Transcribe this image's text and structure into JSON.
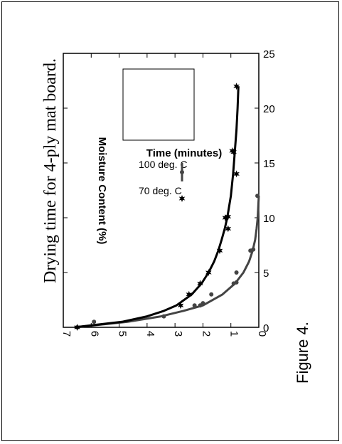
{
  "figure_label": "Figure 4.",
  "chart_data": {
    "type": "line",
    "title": "Drying time for 4-ply mat board.",
    "xlabel": "Time (minutes)",
    "ylabel": "Moisture Content (%)",
    "xlim": [
      0,
      25
    ],
    "ylim": [
      0,
      7
    ],
    "xticks": [
      0,
      5,
      10,
      15,
      20,
      25
    ],
    "yticks": [
      0,
      1,
      2,
      3,
      4,
      5,
      6,
      7
    ],
    "legend_position": "top-right",
    "series": [
      {
        "name": "100 deg. C",
        "marker": "circle",
        "color": "#444444",
        "points": [
          [
            0,
            6.5
          ],
          [
            0.5,
            5.9
          ],
          [
            1,
            3.4
          ],
          [
            2,
            2.3
          ],
          [
            2,
            2.1
          ],
          [
            2.2,
            2.0
          ],
          [
            3,
            1.7
          ],
          [
            4,
            0.9
          ],
          [
            4.1,
            0.8
          ],
          [
            5,
            0.8
          ],
          [
            7,
            0.3
          ],
          [
            7.1,
            0.2
          ],
          [
            12,
            0.05
          ]
        ],
        "fit": [
          [
            0,
            6.6
          ],
          [
            0.5,
            4.7
          ],
          [
            1,
            3.5
          ],
          [
            1.5,
            2.7
          ],
          [
            2,
            2.0
          ],
          [
            3,
            1.3
          ],
          [
            4,
            0.85
          ],
          [
            5,
            0.55
          ],
          [
            6,
            0.35
          ],
          [
            7,
            0.22
          ],
          [
            8,
            0.13
          ],
          [
            9,
            0.08
          ],
          [
            10,
            0.04
          ],
          [
            11,
            0.02
          ],
          [
            12,
            0.0
          ]
        ]
      },
      {
        "name": "70 deg. C",
        "marker": "star",
        "color": "#000000",
        "points": [
          [
            0,
            6.5
          ],
          [
            2,
            2.8
          ],
          [
            3,
            2.5
          ],
          [
            4,
            2.1
          ],
          [
            5,
            1.8
          ],
          [
            7,
            1.4
          ],
          [
            9,
            1.1
          ],
          [
            10,
            1.2
          ],
          [
            10.1,
            1.1
          ],
          [
            14,
            0.8
          ],
          [
            16,
            0.9
          ],
          [
            16.1,
            0.95
          ],
          [
            22,
            0.8
          ]
        ],
        "fit": [
          [
            0,
            6.6
          ],
          [
            0.5,
            4.9
          ],
          [
            1,
            4.0
          ],
          [
            1.5,
            3.4
          ],
          [
            2,
            2.95
          ],
          [
            3,
            2.4
          ],
          [
            4,
            2.05
          ],
          [
            5,
            1.8
          ],
          [
            6,
            1.6
          ],
          [
            7,
            1.45
          ],
          [
            8,
            1.33
          ],
          [
            9,
            1.22
          ],
          [
            10,
            1.13
          ],
          [
            12,
            1.0
          ],
          [
            14,
            0.92
          ],
          [
            16,
            0.86
          ],
          [
            18,
            0.8
          ],
          [
            20,
            0.76
          ],
          [
            22,
            0.73
          ]
        ]
      }
    ]
  }
}
